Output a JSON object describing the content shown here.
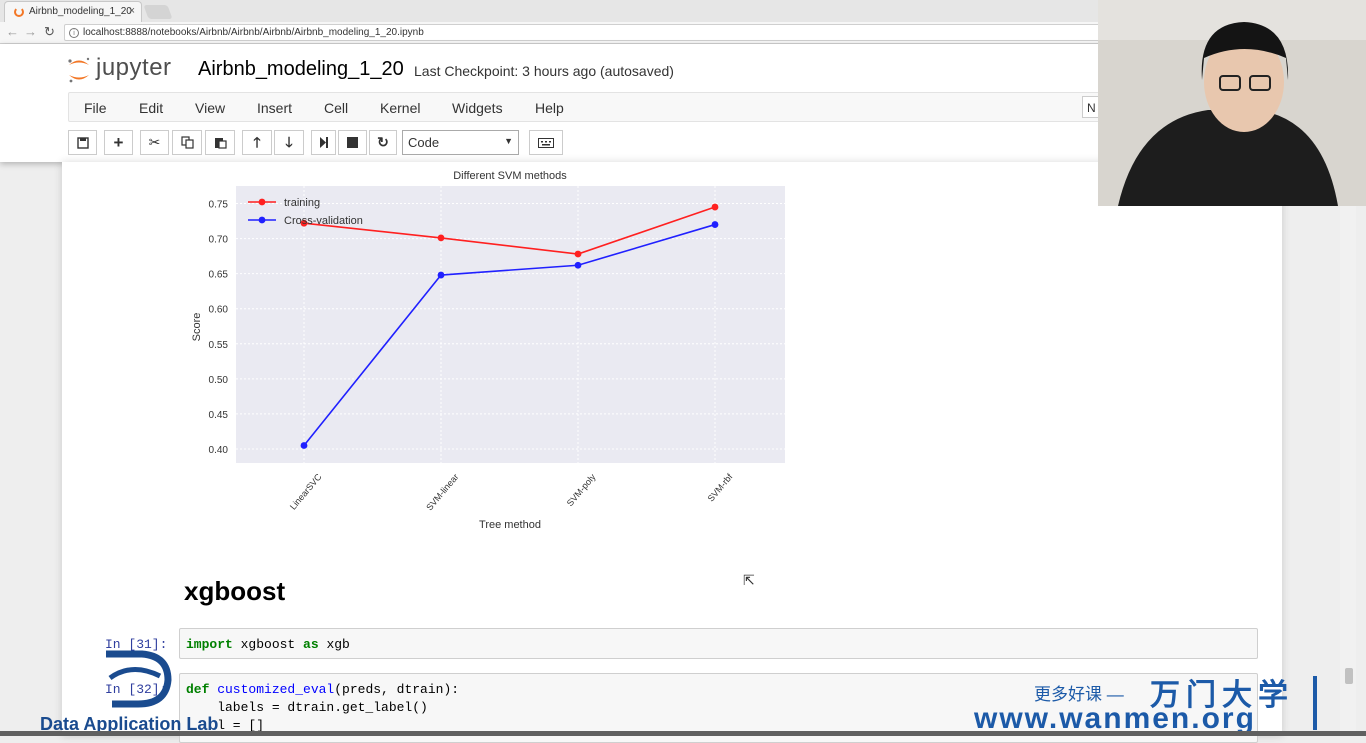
{
  "browser": {
    "tab_title": "Airbnb_modeling_1_20",
    "tab_close": "×",
    "url": "localhost:8888/notebooks/Airbnb/Airbnb/Airbnb/Airbnb_modeling_1_20.ipynb",
    "url_icon": "i"
  },
  "header": {
    "logo_text": "jupyter",
    "notebook_name": "Airbnb_modeling_1_20",
    "checkpoint": "Last Checkpoint: 3 hours ago (autosaved)",
    "kernel_indicator": "N"
  },
  "menu": {
    "items": [
      "File",
      "Edit",
      "View",
      "Insert",
      "Cell",
      "Kernel",
      "Widgets",
      "Help"
    ]
  },
  "toolbar": {
    "cell_type": "Code",
    "icons": [
      "save-icon",
      "plus-icon",
      "cut-icon",
      "copy-icon",
      "paste-icon",
      "arrow-up-icon",
      "arrow-down-icon",
      "step-forward-icon",
      "stop-icon",
      "restart-icon",
      "keyboard-icon"
    ]
  },
  "chart_data": {
    "type": "line",
    "title": "Different SVM methods",
    "xlabel": "Tree method",
    "ylabel": "Score",
    "categories": [
      "LinearSVC",
      "SVM-linear",
      "SVM-poly",
      "SVM-rbf"
    ],
    "series": [
      {
        "name": "training",
        "color": "#ff2020",
        "values": [
          0.722,
          0.701,
          0.678,
          0.745
        ]
      },
      {
        "name": "Cross-validation",
        "color": "#2020ff",
        "values": [
          0.405,
          0.648,
          0.662,
          0.72
        ]
      }
    ],
    "ylim": [
      0.38,
      0.775
    ],
    "yticks": [
      "0.40",
      "0.45",
      "0.50",
      "0.55",
      "0.60",
      "0.65",
      "0.70",
      "0.75"
    ],
    "ytick_values": [
      0.4,
      0.45,
      0.5,
      0.55,
      0.6,
      0.65,
      0.7,
      0.75
    ],
    "grid": true,
    "legend": "top-left",
    "background": "#eaeaf2"
  },
  "notebook": {
    "heading": "xgboost",
    "cell1_prompt": "In [31]:",
    "cell1_code": {
      "kw1": "import",
      "mod": " xgboost ",
      "kw2": "as",
      "alias": " xgb"
    },
    "cell2_prompt": "In [32]:",
    "cell2_line1": {
      "kw": "def",
      "fn": " customized_eval",
      "rest": "(preds, dtrain):"
    },
    "cell2_line2": "    labels = dtrain.get_label()",
    "cell2_line3": "    l = []"
  },
  "watermark": {
    "dal_text": "Data Application Lab",
    "cn_small": "更多好课 —",
    "cn_big": "万门大学",
    "site": "www.wanmen.org"
  }
}
